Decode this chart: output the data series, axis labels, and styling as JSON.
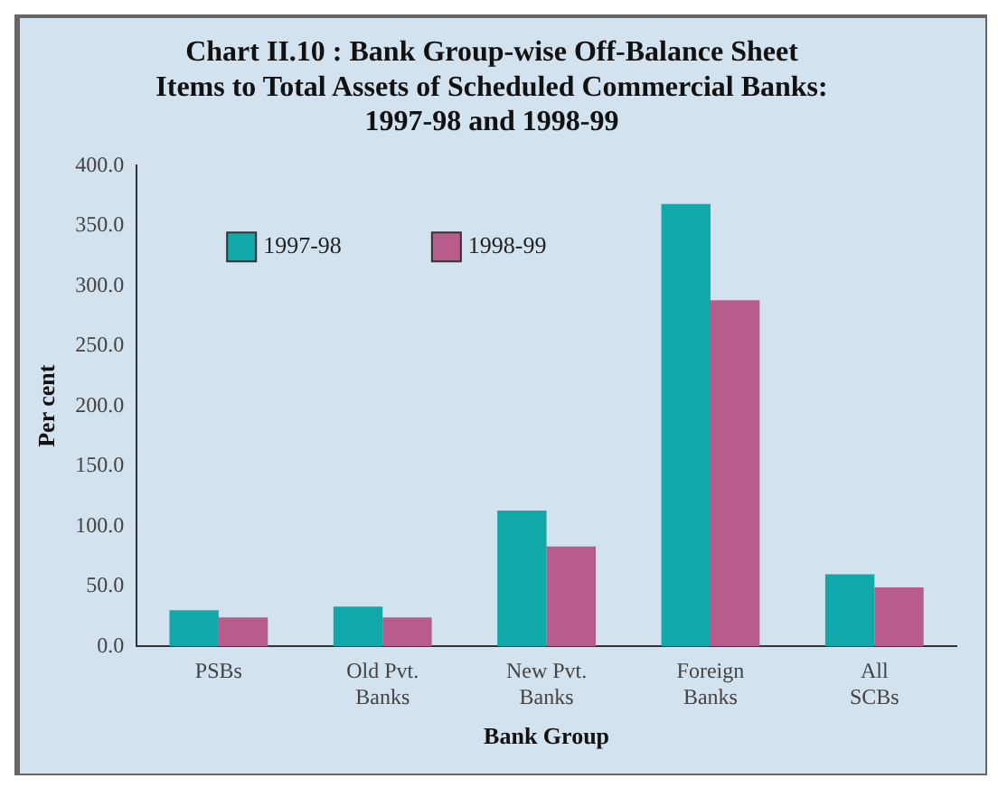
{
  "chart_data": {
    "type": "bar",
    "title": "Chart II.10 : Bank Group-wise Off-Balance Sheet Items to Total Assets of Scheduled Commercial Banks: 1997-98 and 1998-99",
    "xlabel": "Bank Group",
    "ylabel": "Per cent",
    "categories": [
      "PSBs",
      "Old Pvt. Banks",
      "New Pvt. Banks",
      "Foreign Banks",
      "All SCBs"
    ],
    "series": [
      {
        "name": "1997-98",
        "color": "#10a8a8",
        "values": [
          30,
          33,
          113,
          368,
          60
        ]
      },
      {
        "name": "1998-99",
        "color": "#b85c8c",
        "values": [
          24,
          24,
          83,
          288,
          49
        ]
      }
    ],
    "ylim": [
      0,
      400
    ],
    "yticks": [
      {
        "value": 0,
        "label": "0.0"
      },
      {
        "value": 50,
        "label": "50.0"
      },
      {
        "value": 100,
        "label": "100.0"
      },
      {
        "value": 150,
        "label": "150.0"
      },
      {
        "value": 200,
        "label": "200.0"
      },
      {
        "value": 250,
        "label": "250.0"
      },
      {
        "value": 300,
        "label": "300.0"
      },
      {
        "value": 350,
        "label": "350.0"
      },
      {
        "value": 400,
        "label": "400.0"
      }
    ],
    "grid": false,
    "legend": "top left"
  }
}
